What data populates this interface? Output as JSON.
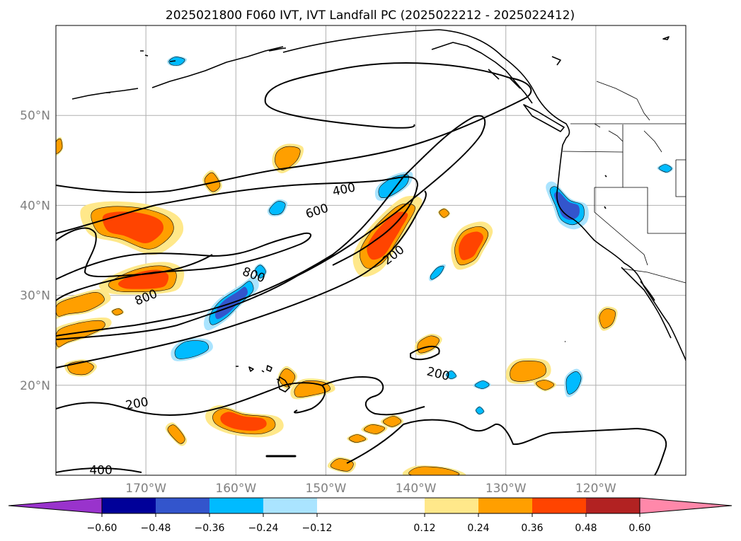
{
  "chart_data": {
    "type": "map-contour",
    "title": "2025021800 F060 IVT, IVT Landfall PC (2025022212 - 2025022412)",
    "lat_ticks": [
      {
        "value": 50,
        "label": "50°N"
      },
      {
        "value": 40,
        "label": "40°N"
      },
      {
        "value": 30,
        "label": "30°N"
      },
      {
        "value": 20,
        "label": "20°N"
      }
    ],
    "lon_ticks": [
      {
        "value": -170,
        "label": "170°W"
      },
      {
        "value": -160,
        "label": "160°W"
      },
      {
        "value": -150,
        "label": "150°W"
      },
      {
        "value": -140,
        "label": "140°W"
      },
      {
        "value": -130,
        "label": "130°W"
      },
      {
        "value": -120,
        "label": "120°W"
      }
    ],
    "extent": {
      "lon_min": -180,
      "lon_max": -110,
      "lat_min": 10,
      "lat_max": 60
    },
    "grid": true,
    "contour_labels": [
      {
        "text": "400",
        "lon": -148.0,
        "lat": 41.8,
        "angle": -12
      },
      {
        "text": "600",
        "lon": -151.0,
        "lat": 39.4,
        "angle": -18
      },
      {
        "text": "800",
        "lon": -158.0,
        "lat": 32.3,
        "angle": 20
      },
      {
        "text": "800",
        "lon": -170.0,
        "lat": 29.8,
        "angle": -22
      },
      {
        "text": "200",
        "lon": -142.5,
        "lat": 34.5,
        "angle": -38
      },
      {
        "text": "200",
        "lon": -137.5,
        "lat": 21.3,
        "angle": 14
      },
      {
        "text": "200",
        "lon": -171.0,
        "lat": 18.0,
        "angle": -10
      },
      {
        "text": "400",
        "lon": -175.0,
        "lat": 10.6,
        "angle": 0
      }
    ],
    "colorbar": {
      "ticks": [
        {
          "value": -0.6,
          "label": "−0.60"
        },
        {
          "value": -0.48,
          "label": "−0.48"
        },
        {
          "value": -0.36,
          "label": "−0.36"
        },
        {
          "value": -0.24,
          "label": "−0.24"
        },
        {
          "value": -0.12,
          "label": "−0.12"
        },
        {
          "value": 0.12,
          "label": "0.12"
        },
        {
          "value": 0.24,
          "label": "0.24"
        },
        {
          "value": 0.36,
          "label": "0.36"
        },
        {
          "value": 0.48,
          "label": "0.48"
        },
        {
          "value": 0.6,
          "label": "0.60"
        }
      ],
      "levels": [
        -0.6,
        -0.48,
        -0.36,
        -0.24,
        -0.12,
        0.12,
        0.24,
        0.36,
        0.48,
        0.6
      ],
      "colors": [
        "#9933cc",
        "#000099",
        "#3355cc",
        "#00bbff",
        "#aae4ff",
        "#ffffff",
        "#ffe88a",
        "#ff9f00",
        "#ff4400",
        "#b22222",
        "#ff88aa"
      ],
      "extend": "both"
    },
    "colors": {
      "pos1": "#ffe88a",
      "pos2": "#ff9f00",
      "pos3": "#ff4400",
      "neg1": "#aae4ff",
      "neg2": "#00bbff",
      "neg3": "#3355cc"
    }
  }
}
